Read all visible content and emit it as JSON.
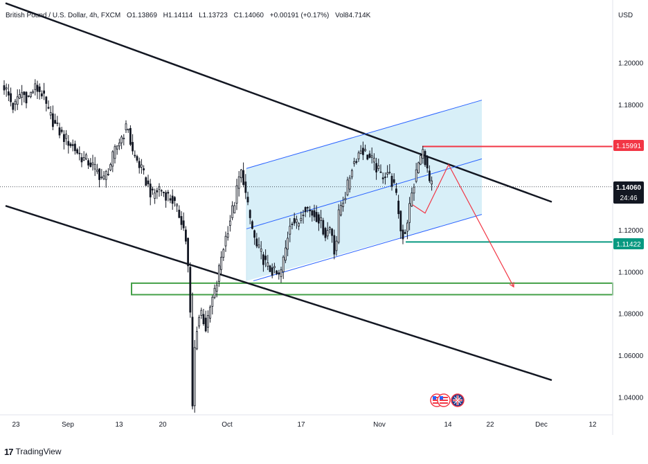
{
  "legend": {
    "symbol": "British Pound / U.S. Dollar, 4h, FXCM",
    "open": "O1.13869",
    "high": "H1.14114",
    "low": "L1.13723",
    "close": "C1.14060",
    "change": "+0.00191 (+0.17%)",
    "volume": "Vol84.714K"
  },
  "currency_label": "USD",
  "price_badges": {
    "resistance": {
      "value": "1.15991",
      "color": "#f23645"
    },
    "current": {
      "value": "1.14060",
      "countdown": "24:46",
      "color": "#131722"
    },
    "support": {
      "value": "1.11422",
      "color": "#089981"
    }
  },
  "branding": {
    "text": "TradingView"
  },
  "chart_data": {
    "type": "candlestick",
    "title": "British Pound / U.S. Dollar, 4h, FXCM",
    "y_axis": {
      "ticks": [
        "1.20000",
        "1.18000",
        "1.16000",
        "1.14000",
        "1.12000",
        "1.10000",
        "1.08000",
        "1.06000",
        "1.04000"
      ],
      "tick_values": [
        1.2,
        1.18,
        1.16,
        1.14,
        1.12,
        1.1,
        1.08,
        1.06,
        1.04
      ],
      "range": [
        1.0315,
        1.23
      ]
    },
    "x_axis": {
      "ticks": [
        "23",
        "Sep",
        "13",
        "20",
        "Oct",
        "17",
        "Nov",
        "14",
        "22",
        "Dec",
        "12"
      ]
    },
    "price_path": [
      [
        0,
        1.193
      ],
      [
        10,
        1.186
      ],
      [
        20,
        1.178
      ],
      [
        30,
        1.186
      ],
      [
        40,
        1.183
      ],
      [
        50,
        1.188
      ],
      [
        60,
        1.186
      ],
      [
        70,
        1.176
      ],
      [
        80,
        1.17
      ],
      [
        90,
        1.165
      ],
      [
        100,
        1.162
      ],
      [
        110,
        1.158
      ],
      [
        120,
        1.154
      ],
      [
        130,
        1.152
      ],
      [
        140,
        1.148
      ],
      [
        150,
        1.144
      ],
      [
        160,
        1.152
      ],
      [
        170,
        1.161
      ],
      [
        178,
        1.166
      ],
      [
        185,
        1.17
      ],
      [
        190,
        1.158
      ],
      [
        200,
        1.152
      ],
      [
        210,
        1.144
      ],
      [
        220,
        1.136
      ],
      [
        230,
        1.14
      ],
      [
        240,
        1.137
      ],
      [
        250,
        1.134
      ],
      [
        255,
        1.13
      ],
      [
        262,
        1.125
      ],
      [
        268,
        1.117
      ],
      [
        272,
        1.1
      ],
      [
        276,
        1.07
      ],
      [
        278,
        1.035
      ],
      [
        282,
        1.07
      ],
      [
        290,
        1.082
      ],
      [
        298,
        1.072
      ],
      [
        305,
        1.085
      ],
      [
        312,
        1.092
      ],
      [
        320,
        1.108
      ],
      [
        330,
        1.122
      ],
      [
        340,
        1.135
      ],
      [
        346,
        1.146
      ],
      [
        350,
        1.148
      ],
      [
        356,
        1.134
      ],
      [
        362,
        1.124
      ],
      [
        370,
        1.112
      ],
      [
        378,
        1.108
      ],
      [
        386,
        1.102
      ],
      [
        395,
        1.1
      ],
      [
        404,
        1.097
      ],
      [
        412,
        1.11
      ],
      [
        420,
        1.126
      ],
      [
        430,
        1.122
      ],
      [
        440,
        1.132
      ],
      [
        450,
        1.128
      ],
      [
        460,
        1.126
      ],
      [
        470,
        1.118
      ],
      [
        478,
        1.122
      ],
      [
        484,
        1.108
      ],
      [
        490,
        1.13
      ],
      [
        500,
        1.138
      ],
      [
        508,
        1.15
      ],
      [
        515,
        1.155
      ],
      [
        522,
        1.159
      ],
      [
        530,
        1.156
      ],
      [
        540,
        1.152
      ],
      [
        550,
        1.146
      ],
      [
        560,
        1.148
      ],
      [
        570,
        1.14
      ],
      [
        576,
        1.128
      ],
      [
        580,
        1.116
      ],
      [
        586,
        1.12
      ],
      [
        592,
        1.132
      ],
      [
        598,
        1.142
      ],
      [
        605,
        1.153
      ],
      [
        612,
        1.158
      ],
      [
        616,
        1.15
      ],
      [
        620,
        1.143
      ],
      [
        625,
        1.14
      ]
    ],
    "annotations": {
      "descending_channel": {
        "upper": [
          [
            8,
            1.2285
          ],
          [
            797,
            1.1334
          ]
        ],
        "lower": [
          [
            8,
            1.1315
          ],
          [
            797,
            1.0481
          ]
        ]
      },
      "ascending_channel": {
        "fill": "#d8eff8",
        "box_time": [
          356,
          696
        ],
        "upper": [
          [
            356,
            1.1494
          ],
          [
            696,
            1.1821
          ]
        ],
        "middle": [
          [
            356,
            1.1205
          ],
          [
            696,
            1.154
          ]
        ],
        "lower": [
          [
            366,
            1.0956
          ],
          [
            696,
            1.1274
          ]
        ]
      },
      "resistance_line": {
        "value": 1.15991,
        "from": 610,
        "color": "#f23645"
      },
      "support_line": {
        "value": 1.11422,
        "from": 586,
        "color": "#089981"
      },
      "target_zone": {
        "top": 1.0945,
        "bottom": 1.089,
        "from": 190,
        "color": "#43a047"
      },
      "projection_path": [
        [
          596,
          1.132
        ],
        [
          614,
          1.128
        ],
        [
          648,
          1.1512
        ],
        [
          742,
          1.0927
        ]
      ],
      "projection_color": "#f23645"
    }
  }
}
